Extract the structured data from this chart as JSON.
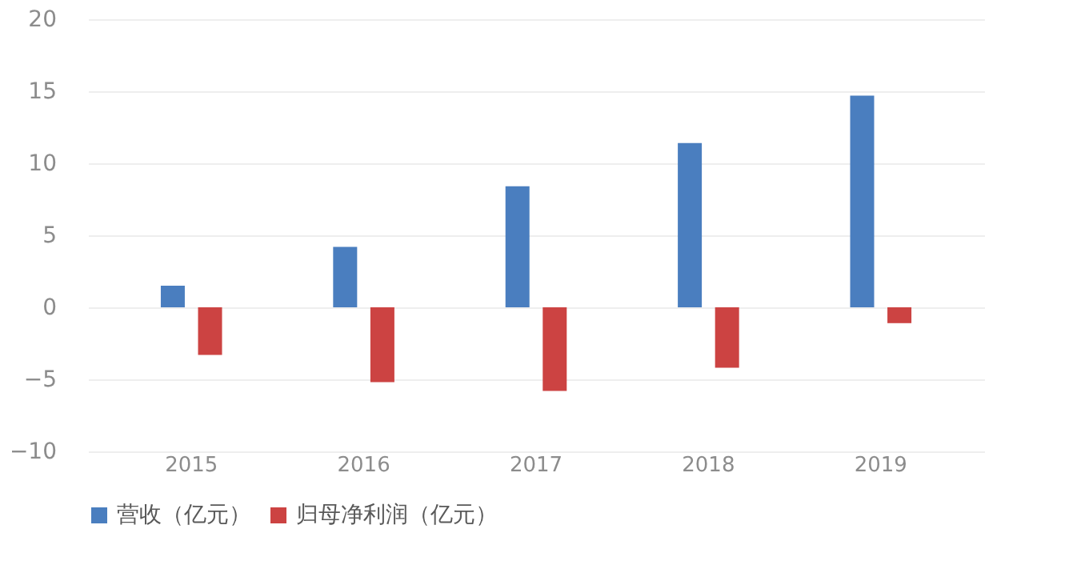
{
  "chart_data": {
    "type": "bar",
    "categories": [
      "2015",
      "2016",
      "2017",
      "2018",
      "2019"
    ],
    "series": [
      {
        "name": "营收（亿元）",
        "color": "#4a7ebf",
        "values": [
          1.5,
          4.2,
          8.4,
          11.4,
          14.7
        ]
      },
      {
        "name": "归母净利润（亿元）",
        "color": "#cc4342",
        "values": [
          -3.3,
          -5.2,
          -5.8,
          -4.2,
          -1.1
        ]
      }
    ],
    "ylim": [
      -10,
      20
    ],
    "yticks": [
      -10,
      -5,
      0,
      5,
      10,
      15,
      20
    ],
    "grid": "y",
    "legend": "bottom"
  }
}
